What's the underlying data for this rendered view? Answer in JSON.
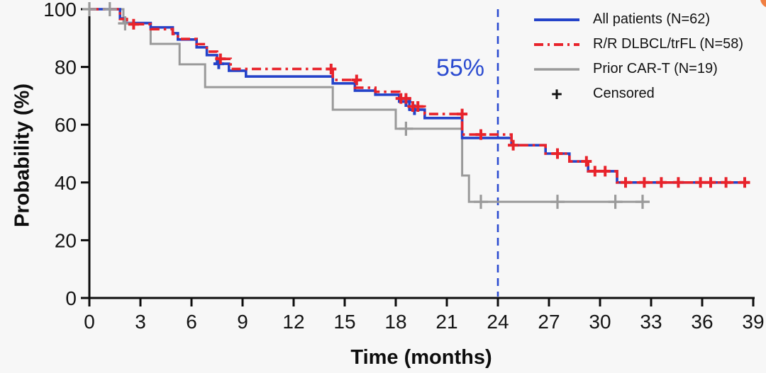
{
  "chart_data": {
    "type": "line",
    "subtype": "kaplan-meier-step-curves",
    "title": "",
    "xlabel": "Time (months)",
    "ylabel": "Probability (%)",
    "xlim": [
      0,
      39
    ],
    "ylim": [
      0,
      100
    ],
    "xticks": [
      0,
      3,
      6,
      9,
      12,
      15,
      18,
      21,
      24,
      27,
      30,
      33,
      36,
      39
    ],
    "yticks": [
      0,
      20,
      40,
      60,
      80,
      100
    ],
    "grid": false,
    "axis_color": "#0d0d0d",
    "vline": {
      "x": 24,
      "color": "#2b4bd0",
      "style": "dashed"
    },
    "annotation": {
      "text": "55%",
      "x": 21.5,
      "y": 79,
      "color": "#2b4bd0"
    },
    "series": [
      {
        "id": "all-patients",
        "name": "All patients (N=62)",
        "color": "#2443c9",
        "dash": "solid",
        "points": [
          [
            0,
            100
          ],
          [
            1.8,
            96.8
          ],
          [
            2.1,
            95.2
          ],
          [
            3.6,
            93.7
          ],
          [
            4.9,
            91.7
          ],
          [
            5.2,
            89.5
          ],
          [
            6.3,
            86.8
          ],
          [
            6.9,
            84.1
          ],
          [
            7.5,
            81.1
          ],
          [
            8.2,
            78.7
          ],
          [
            9.2,
            76.7
          ],
          [
            14.3,
            74.3
          ],
          [
            15.6,
            71.8
          ],
          [
            16.8,
            70.4
          ],
          [
            18.2,
            68.0
          ],
          [
            18.8,
            65.2
          ],
          [
            19.7,
            62.3
          ],
          [
            21.9,
            55.4
          ],
          [
            24.8,
            52.9
          ],
          [
            26.8,
            50.0
          ],
          [
            28.2,
            47.3
          ],
          [
            29.3,
            43.9
          ],
          [
            31.0,
            40.0
          ],
          [
            38.8,
            40.0
          ]
        ],
        "censors": [
          [
            7.6,
            81.1
          ],
          [
            18.6,
            68.0
          ],
          [
            19.1,
            65.2
          ]
        ]
      },
      {
        "id": "rr-dlbcl-trfl",
        "name": "R/R DLBCL/trFL (N=58)",
        "color": "#e8232b",
        "dash": "dashdot",
        "points": [
          [
            0,
            100
          ],
          [
            1.8,
            96.6
          ],
          [
            2.2,
            94.8
          ],
          [
            3.6,
            93.1
          ],
          [
            4.9,
            91.4
          ],
          [
            5.2,
            89.7
          ],
          [
            6.3,
            87.9
          ],
          [
            6.9,
            85.3
          ],
          [
            7.5,
            82.8
          ],
          [
            8.3,
            79.3
          ],
          [
            14.3,
            75.5
          ],
          [
            15.6,
            72.8
          ],
          [
            16.8,
            71.4
          ],
          [
            18.2,
            69.1
          ],
          [
            18.8,
            66.3
          ],
          [
            19.7,
            63.7
          ],
          [
            21.9,
            56.6
          ],
          [
            24.8,
            52.9
          ],
          [
            26.8,
            50.0
          ],
          [
            28.2,
            47.3
          ],
          [
            29.3,
            43.9
          ],
          [
            31.0,
            40.0
          ],
          [
            38.8,
            40.0
          ]
        ],
        "censors": [
          [
            2.6,
            94.8
          ],
          [
            7.7,
            82.8
          ],
          [
            14.2,
            79.3
          ],
          [
            15.7,
            75.5
          ],
          [
            18.3,
            69.1
          ],
          [
            18.6,
            69.1
          ],
          [
            19.0,
            66.3
          ],
          [
            19.3,
            66.3
          ],
          [
            21.9,
            63.7
          ],
          [
            23.0,
            56.6
          ],
          [
            24.9,
            52.9
          ],
          [
            27.5,
            50.0
          ],
          [
            29.2,
            47.3
          ],
          [
            29.7,
            43.9
          ],
          [
            30.3,
            43.9
          ],
          [
            31.5,
            40.0
          ],
          [
            32.6,
            40.0
          ],
          [
            33.6,
            40.0
          ],
          [
            34.6,
            40.0
          ],
          [
            35.9,
            40.0
          ],
          [
            36.5,
            40.0
          ],
          [
            37.4,
            40.0
          ],
          [
            38.5,
            40.0
          ]
        ]
      },
      {
        "id": "prior-car-t",
        "name": "Prior CAR-T (N=19)",
        "color": "#9a9a9a",
        "dash": "solid",
        "points": [
          [
            0,
            100
          ],
          [
            2.0,
            95.1
          ],
          [
            3.6,
            88.0
          ],
          [
            5.3,
            80.9
          ],
          [
            6.8,
            73.0
          ],
          [
            14.3,
            65.2
          ],
          [
            18.0,
            58.6
          ],
          [
            21.9,
            42.4
          ],
          [
            22.3,
            33.3
          ],
          [
            32.6,
            33.3
          ]
        ],
        "censors": [
          [
            0,
            100
          ],
          [
            1.2,
            100
          ],
          [
            2.1,
            95.1
          ],
          [
            18.6,
            58.6
          ],
          [
            23.0,
            33.3
          ],
          [
            27.5,
            33.3
          ],
          [
            30.9,
            33.3
          ],
          [
            32.5,
            33.3
          ]
        ]
      }
    ],
    "legend": {
      "position": "inside-top-right",
      "censored_marker": "+",
      "censored_label": "Censored"
    },
    "decoration": {
      "corner_dot_color": "#f07f42"
    }
  }
}
